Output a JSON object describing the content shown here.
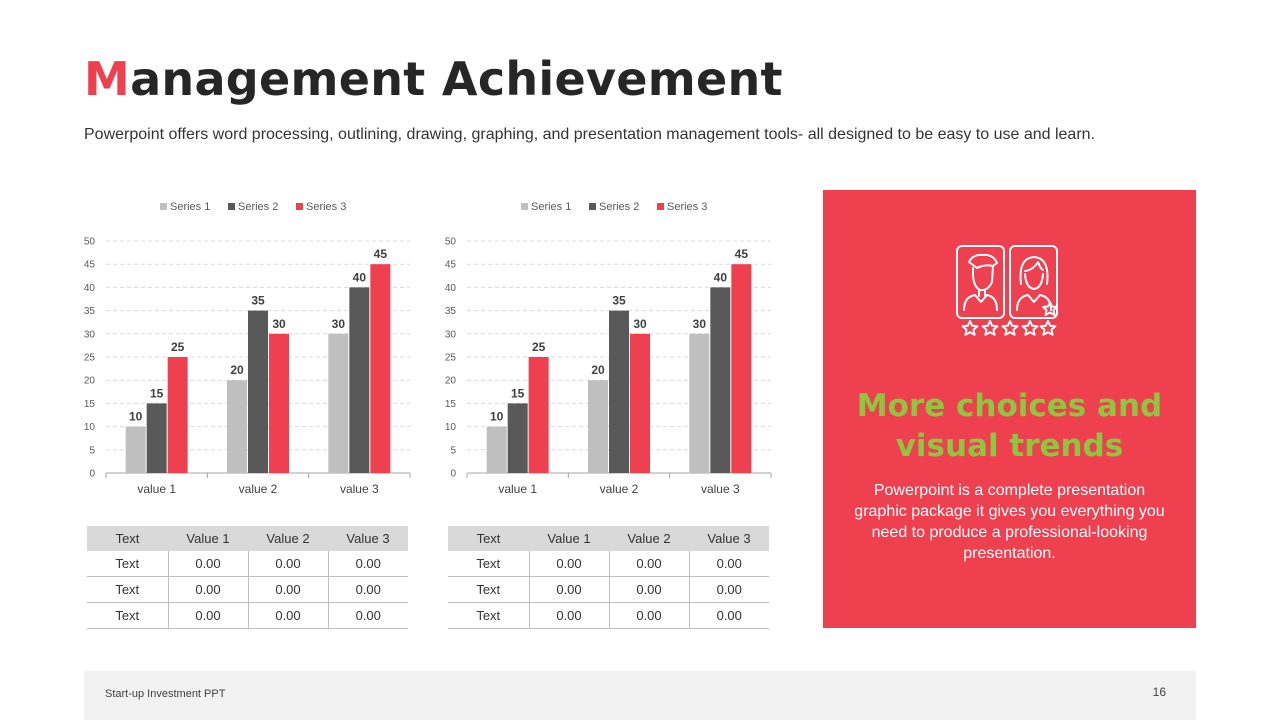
{
  "slide": {
    "title_first": "M",
    "title_rest": "anagement Achievement",
    "subtitle": "Powerpoint offers word processing, outlining, drawing, graphing, and presentation management tools- all designed to be easy to use and learn."
  },
  "chart_data": [
    {
      "type": "bar",
      "categories": [
        "value 1",
        "value 2",
        "value 3"
      ],
      "series": [
        {
          "name": "Series 1",
          "values": [
            10,
            20,
            30
          ],
          "color": "#bfbfbf"
        },
        {
          "name": "Series 2",
          "values": [
            15,
            35,
            40
          ],
          "color": "#595959"
        },
        {
          "name": "Series 3",
          "values": [
            25,
            30,
            45
          ],
          "color": "#ef4050"
        }
      ],
      "ylim": [
        0,
        50
      ],
      "yticks": [
        0,
        5,
        10,
        15,
        20,
        25,
        30,
        35,
        40,
        45,
        50
      ],
      "grid": true,
      "legend": "top",
      "data_labels": true
    },
    {
      "type": "bar",
      "categories": [
        "value 1",
        "value 2",
        "value 3"
      ],
      "series": [
        {
          "name": "Series 1",
          "values": [
            10,
            20,
            30
          ],
          "color": "#bfbfbf"
        },
        {
          "name": "Series 2",
          "values": [
            15,
            35,
            40
          ],
          "color": "#595959"
        },
        {
          "name": "Series 3",
          "values": [
            25,
            30,
            45
          ],
          "color": "#ef4050"
        }
      ],
      "ylim": [
        0,
        50
      ],
      "yticks": [
        0,
        5,
        10,
        15,
        20,
        25,
        30,
        35,
        40,
        45,
        50
      ],
      "grid": true,
      "legend": "top",
      "data_labels": true
    }
  ],
  "tables": [
    {
      "headers": [
        "Text",
        "Value 1",
        "Value 2",
        "Value 3"
      ],
      "rows": [
        [
          "Text",
          "0.00",
          "0.00",
          "0.00"
        ],
        [
          "Text",
          "0.00",
          "0.00",
          "0.00"
        ],
        [
          "Text",
          "0.00",
          "0.00",
          "0.00"
        ]
      ]
    },
    {
      "headers": [
        "Text",
        "Value 1",
        "Value 2",
        "Value 3"
      ],
      "rows": [
        [
          "Text",
          "0.00",
          "0.00",
          "0.00"
        ],
        [
          "Text",
          "0.00",
          "0.00",
          "0.00"
        ],
        [
          "Text",
          "0.00",
          "0.00",
          "0.00"
        ]
      ]
    }
  ],
  "card": {
    "background": "#ef4050",
    "icon": "user-profiles-rating-icon",
    "heading_line1": "More choices and",
    "heading_line2": "visual trends",
    "heading_color": "#8dc63f",
    "text": "Powerpoint is a complete presentation graphic package it gives you everything you need to produce a professional-looking presentation."
  },
  "footer": {
    "label": "Start-up Investment PPT",
    "page_number": "16"
  }
}
